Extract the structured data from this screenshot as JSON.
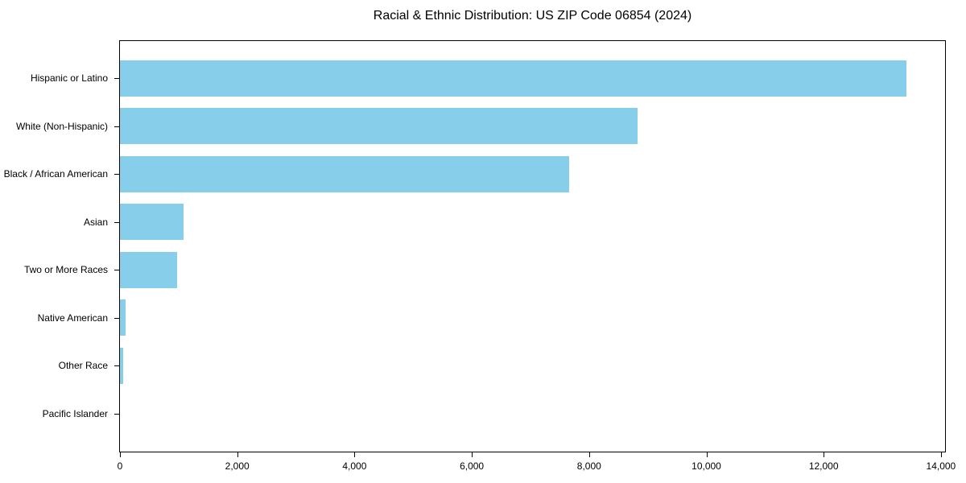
{
  "chart_data": {
    "type": "bar",
    "orientation": "horizontal",
    "title": "Racial & Ethnic Distribution: US ZIP Code 06854 (2024)",
    "categories": [
      "Hispanic or Latino",
      "White (Non-Hispanic)",
      "Black / African American",
      "Asian",
      "Two or More Races",
      "Native American",
      "Other Race",
      "Pacific Islander"
    ],
    "values": [
      13410,
      8830,
      7660,
      1085,
      975,
      90,
      60,
      0
    ],
    "xlabel": "",
    "ylabel": "",
    "xlim": [
      0,
      14070
    ],
    "xticks": [
      0,
      2000,
      4000,
      6000,
      8000,
      10000,
      12000,
      14000
    ],
    "xtick_labels": [
      "0",
      "2,000",
      "4,000",
      "6,000",
      "8,000",
      "10,000",
      "12,000",
      "14,000"
    ],
    "grid": false,
    "legend_position": "none",
    "bar_color": "#87CEEB",
    "background_color": "#FFFFFF",
    "spine_color": "#000000",
    "text_color": "#000000"
  }
}
